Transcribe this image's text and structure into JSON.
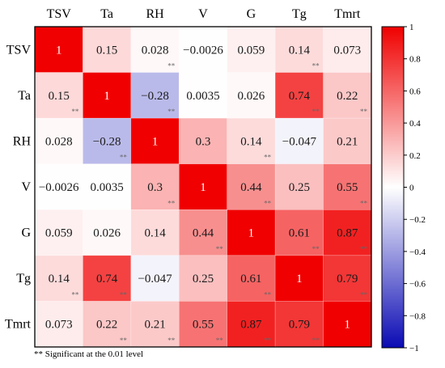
{
  "chart_data": {
    "type": "heatmap",
    "variables": [
      "TSV",
      "Ta",
      "RH",
      "V",
      "G",
      "Tg",
      "Tmrt"
    ],
    "matrix": [
      [
        "1",
        "0.15",
        "0.028",
        "−0.0026",
        "0.059",
        "0.14",
        "0.073"
      ],
      [
        "0.15",
        "1",
        "−0.28",
        "0.0035",
        "0.026",
        "0.74",
        "0.22"
      ],
      [
        "0.028",
        "−0.28",
        "1",
        "0.3",
        "0.14",
        "−0.047",
        "0.21"
      ],
      [
        "−0.0026",
        "0.0035",
        "0.3",
        "1",
        "0.44",
        "0.25",
        "0.55"
      ],
      [
        "0.059",
        "0.026",
        "0.14",
        "0.44",
        "1",
        "0.61",
        "0.87"
      ],
      [
        "0.14",
        "0.74",
        "−0.047",
        "0.25",
        "0.61",
        "1",
        "0.79"
      ],
      [
        "0.073",
        "0.22",
        "0.21",
        "0.55",
        "0.87",
        "0.79",
        "1"
      ]
    ],
    "significance_mark": "**",
    "significant": [
      [
        false,
        false,
        true,
        false,
        false,
        true,
        false
      ],
      [
        true,
        false,
        true,
        false,
        false,
        true,
        true
      ],
      [
        false,
        true,
        false,
        false,
        true,
        false,
        false
      ],
      [
        false,
        false,
        true,
        false,
        true,
        false,
        true
      ],
      [
        false,
        false,
        false,
        true,
        false,
        true,
        true
      ],
      [
        true,
        true,
        false,
        false,
        true,
        false,
        true
      ],
      [
        false,
        true,
        true,
        true,
        true,
        true,
        false
      ]
    ],
    "colorbar": {
      "range": [
        -1,
        1
      ],
      "ticks": [
        "1",
        "0.8",
        "0.6",
        "0.4",
        "0.2",
        "0",
        "−0.2",
        "−0.4",
        "−0.6",
        "−0.8",
        "−1"
      ],
      "colors": {
        "negative": "#0a0ab4",
        "zero": "#ffffff",
        "positive": "#f00000"
      }
    },
    "footnote": "Significant at the 0.01 level"
  }
}
